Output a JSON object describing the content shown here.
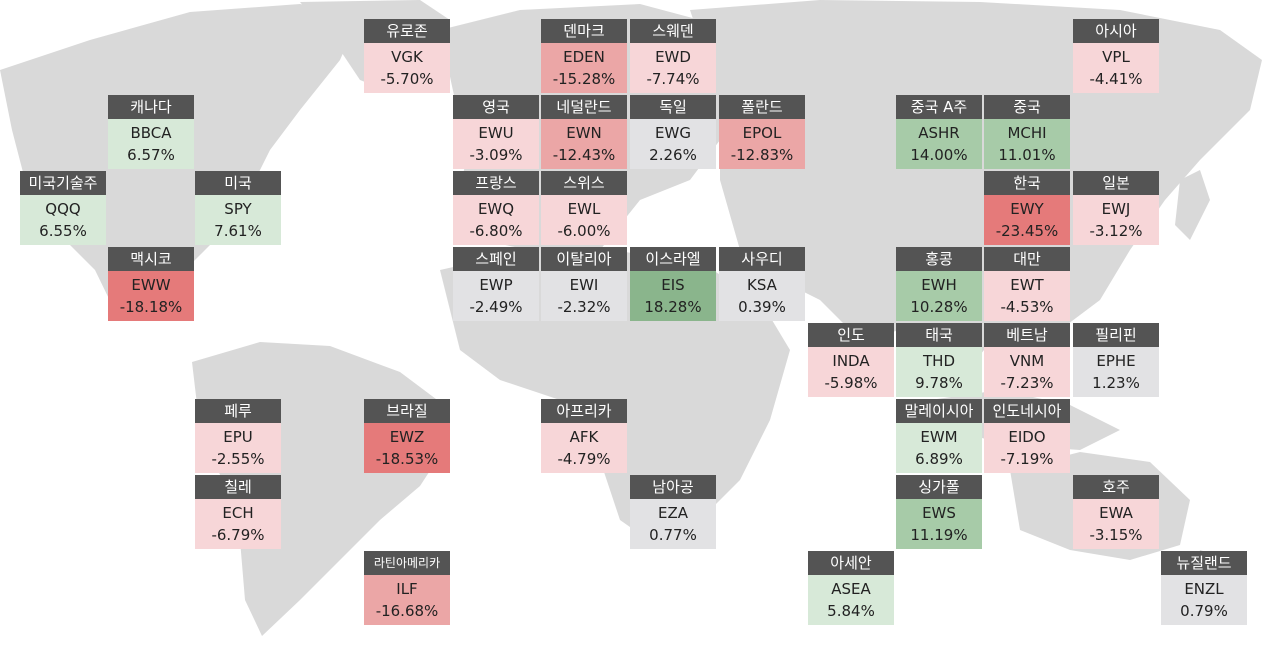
{
  "colors": {
    "label_bg": "#545454",
    "map_land": "#d9d9d9",
    "strong_negative": "#e57a7a",
    "negative": "#eba6a6",
    "mild_negative": "#f7d6d8",
    "neutral": "#e2e2e4",
    "mild_positive": "#d7e9d8",
    "positive": "#a7cba8",
    "strong_positive": "#8ab58c"
  },
  "tiles": [
    {
      "name": "유로존",
      "ticker": "VGK",
      "change": "-5.70%",
      "change_value": -5.7,
      "color": "#f7d6d8"
    },
    {
      "name": "덴마크",
      "ticker": "EDEN",
      "change": "-15.28%",
      "change_value": -15.28,
      "color": "#eba6a6"
    },
    {
      "name": "스웨덴",
      "ticker": "EWD",
      "change": "-7.74%",
      "change_value": -7.74,
      "color": "#f7d6d8"
    },
    {
      "name": "아시아",
      "ticker": "VPL",
      "change": "-4.41%",
      "change_value": -4.41,
      "color": "#f7d6d8"
    },
    {
      "name": "캐나다",
      "ticker": "BBCA",
      "change": "6.57%",
      "change_value": 6.57,
      "color": "#d7e9d8"
    },
    {
      "name": "영국",
      "ticker": "EWU",
      "change": "-3.09%",
      "change_value": -3.09,
      "color": "#f7d6d8"
    },
    {
      "name": "네덜란드",
      "ticker": "EWN",
      "change": "-12.43%",
      "change_value": -12.43,
      "color": "#eba6a6"
    },
    {
      "name": "독일",
      "ticker": "EWG",
      "change": "2.26%",
      "change_value": 2.26,
      "color": "#e2e2e4"
    },
    {
      "name": "폴란드",
      "ticker": "EPOL",
      "change": "-12.83%",
      "change_value": -12.83,
      "color": "#eba6a6"
    },
    {
      "name": "중국 A주",
      "ticker": "ASHR",
      "change": "14.00%",
      "change_value": 14.0,
      "color": "#a7cba8"
    },
    {
      "name": "중국",
      "ticker": "MCHI",
      "change": "11.01%",
      "change_value": 11.01,
      "color": "#a7cba8"
    },
    {
      "name": "미국기술주",
      "ticker": "QQQ",
      "change": "6.55%",
      "change_value": 6.55,
      "color": "#d7e9d8"
    },
    {
      "name": "미국",
      "ticker": "SPY",
      "change": "7.61%",
      "change_value": 7.61,
      "color": "#d7e9d8"
    },
    {
      "name": "프랑스",
      "ticker": "EWQ",
      "change": "-6.80%",
      "change_value": -6.8,
      "color": "#f7d6d8"
    },
    {
      "name": "스위스",
      "ticker": "EWL",
      "change": "-6.00%",
      "change_value": -6.0,
      "color": "#f7d6d8"
    },
    {
      "name": "한국",
      "ticker": "EWY",
      "change": "-23.45%",
      "change_value": -23.45,
      "color": "#e57a7a"
    },
    {
      "name": "일본",
      "ticker": "EWJ",
      "change": "-3.12%",
      "change_value": -3.12,
      "color": "#f7d6d8"
    },
    {
      "name": "맥시코",
      "ticker": "EWW",
      "change": "-18.18%",
      "change_value": -18.18,
      "color": "#e57a7a"
    },
    {
      "name": "스페인",
      "ticker": "EWP",
      "change": "-2.49%",
      "change_value": -2.49,
      "color": "#e2e2e4"
    },
    {
      "name": "이탈리아",
      "ticker": "EWI",
      "change": "-2.32%",
      "change_value": -2.32,
      "color": "#e2e2e4"
    },
    {
      "name": "이스라엘",
      "ticker": "EIS",
      "change": "18.28%",
      "change_value": 18.28,
      "color": "#8ab58c"
    },
    {
      "name": "사우디",
      "ticker": "KSA",
      "change": "0.39%",
      "change_value": 0.39,
      "color": "#e2e2e4"
    },
    {
      "name": "홍콩",
      "ticker": "EWH",
      "change": "10.28%",
      "change_value": 10.28,
      "color": "#a7cba8"
    },
    {
      "name": "대만",
      "ticker": "EWT",
      "change": "-4.53%",
      "change_value": -4.53,
      "color": "#f7d6d8"
    },
    {
      "name": "인도",
      "ticker": "INDA",
      "change": "-5.98%",
      "change_value": -5.98,
      "color": "#f7d6d8"
    },
    {
      "name": "태국",
      "ticker": "THD",
      "change": "9.78%",
      "change_value": 9.78,
      "color": "#d7e9d8"
    },
    {
      "name": "베트남",
      "ticker": "VNM",
      "change": "-7.23%",
      "change_value": -7.23,
      "color": "#f7d6d8"
    },
    {
      "name": "필리핀",
      "ticker": "EPHE",
      "change": "1.23%",
      "change_value": 1.23,
      "color": "#e2e2e4"
    },
    {
      "name": "페루",
      "ticker": "EPU",
      "change": "-2.55%",
      "change_value": -2.55,
      "color": "#f7d6d8"
    },
    {
      "name": "브라질",
      "ticker": "EWZ",
      "change": "-18.53%",
      "change_value": -18.53,
      "color": "#e57a7a"
    },
    {
      "name": "아프리카",
      "ticker": "AFK",
      "change": "-4.79%",
      "change_value": -4.79,
      "color": "#f7d6d8"
    },
    {
      "name": "말레이시아",
      "ticker": "EWM",
      "change": "6.89%",
      "change_value": 6.89,
      "color": "#d7e9d8"
    },
    {
      "name": "인도네시아",
      "ticker": "EIDO",
      "change": "-7.19%",
      "change_value": -7.19,
      "color": "#f7d6d8"
    },
    {
      "name": "칠레",
      "ticker": "ECH",
      "change": "-6.79%",
      "change_value": -6.79,
      "color": "#f7d6d8"
    },
    {
      "name": "남아공",
      "ticker": "EZA",
      "change": "0.77%",
      "change_value": 0.77,
      "color": "#e2e2e4"
    },
    {
      "name": "싱가폴",
      "ticker": "EWS",
      "change": "11.19%",
      "change_value": 11.19,
      "color": "#a7cba8"
    },
    {
      "name": "호주",
      "ticker": "EWA",
      "change": "-3.15%",
      "change_value": -3.15,
      "color": "#f7d6d8"
    },
    {
      "name": "라틴아메리카",
      "ticker": "ILF",
      "change": "-16.68%",
      "change_value": -16.68,
      "color": "#eba6a6"
    },
    {
      "name": "아세안",
      "ticker": "ASEA",
      "change": "5.84%",
      "change_value": 5.84,
      "color": "#d7e9d8"
    },
    {
      "name": "뉴질랜드",
      "ticker": "ENZL",
      "change": "0.79%",
      "change_value": 0.79,
      "color": "#e2e2e4"
    }
  ]
}
